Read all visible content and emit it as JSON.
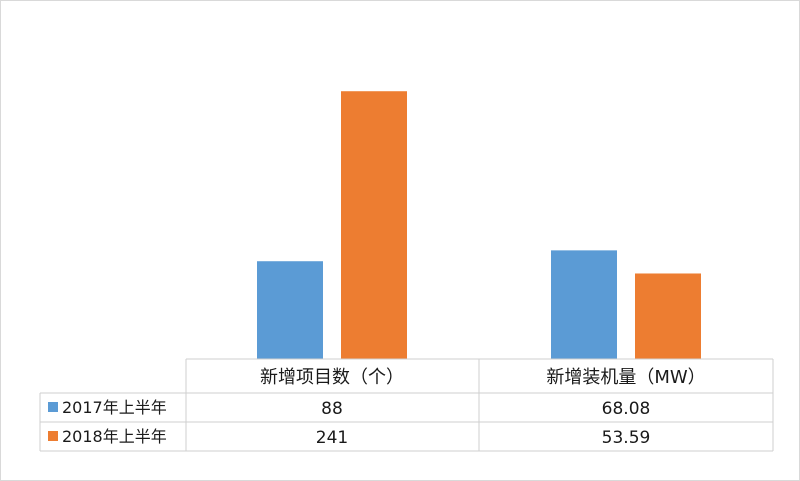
{
  "chart_data": {
    "type": "bar",
    "categories": [
      "新增项目数（个）",
      "新增装机量（MW）"
    ],
    "series": [
      {
        "name": "2017年上半年",
        "values": [
          88,
          68.08
        ],
        "labels": [
          "88",
          "68.08"
        ],
        "color": "#5b9bd5"
      },
      {
        "name": "2018年上半年",
        "values": [
          241,
          53.59
        ],
        "labels": [
          "241",
          "53.59"
        ],
        "color": "#ed7d31"
      }
    ],
    "ylim": [
      0,
      260
    ],
    "title": "",
    "xlabel": "",
    "ylabel": "",
    "grid": false,
    "legend": "data-table",
    "data_table": true
  }
}
